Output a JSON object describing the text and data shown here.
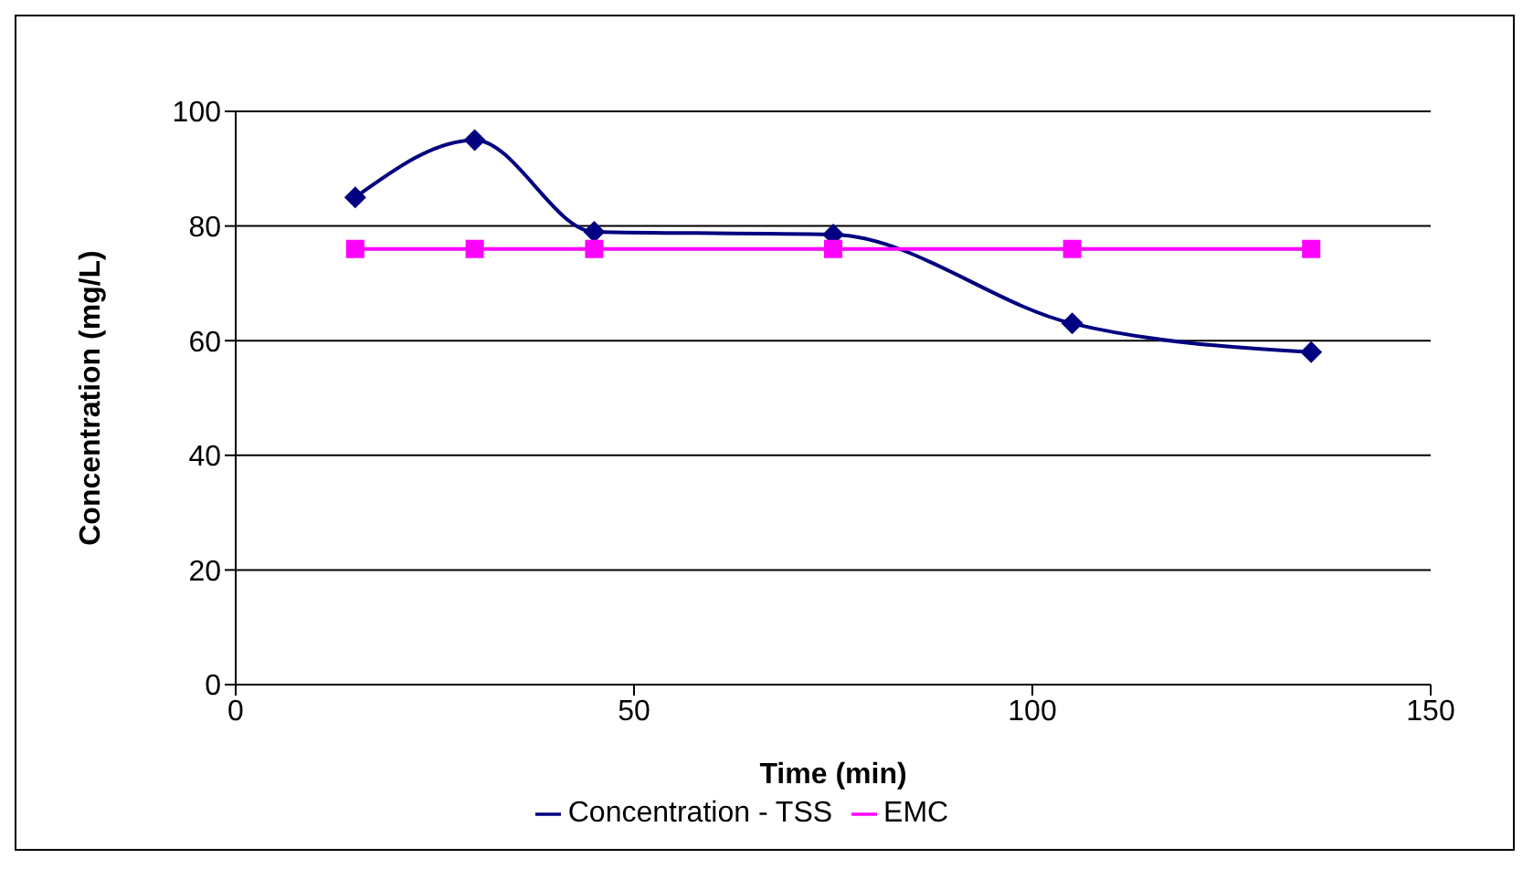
{
  "chart_data": {
    "type": "line",
    "xlabel": "Time (min)",
    "ylabel": "Concentration (mg/L)",
    "x": [
      15,
      30,
      45,
      75,
      105,
      135
    ],
    "series": [
      {
        "name": "Concentration - TSS",
        "color": "#000080",
        "values": [
          85,
          95,
          79,
          78.5,
          63,
          58
        ],
        "marker": "diamond"
      },
      {
        "name": "EMC",
        "color": "#ff00ff",
        "values": [
          76,
          76,
          76,
          76,
          76,
          76
        ],
        "marker": "square"
      }
    ],
    "xlim": [
      0,
      150
    ],
    "xticks": [
      0,
      50,
      100,
      150
    ],
    "ylim": [
      0,
      100
    ],
    "yticks": [
      0,
      20,
      40,
      60,
      80,
      100
    ],
    "grid": "y",
    "legend": "bottom",
    "line_style": "solid"
  }
}
